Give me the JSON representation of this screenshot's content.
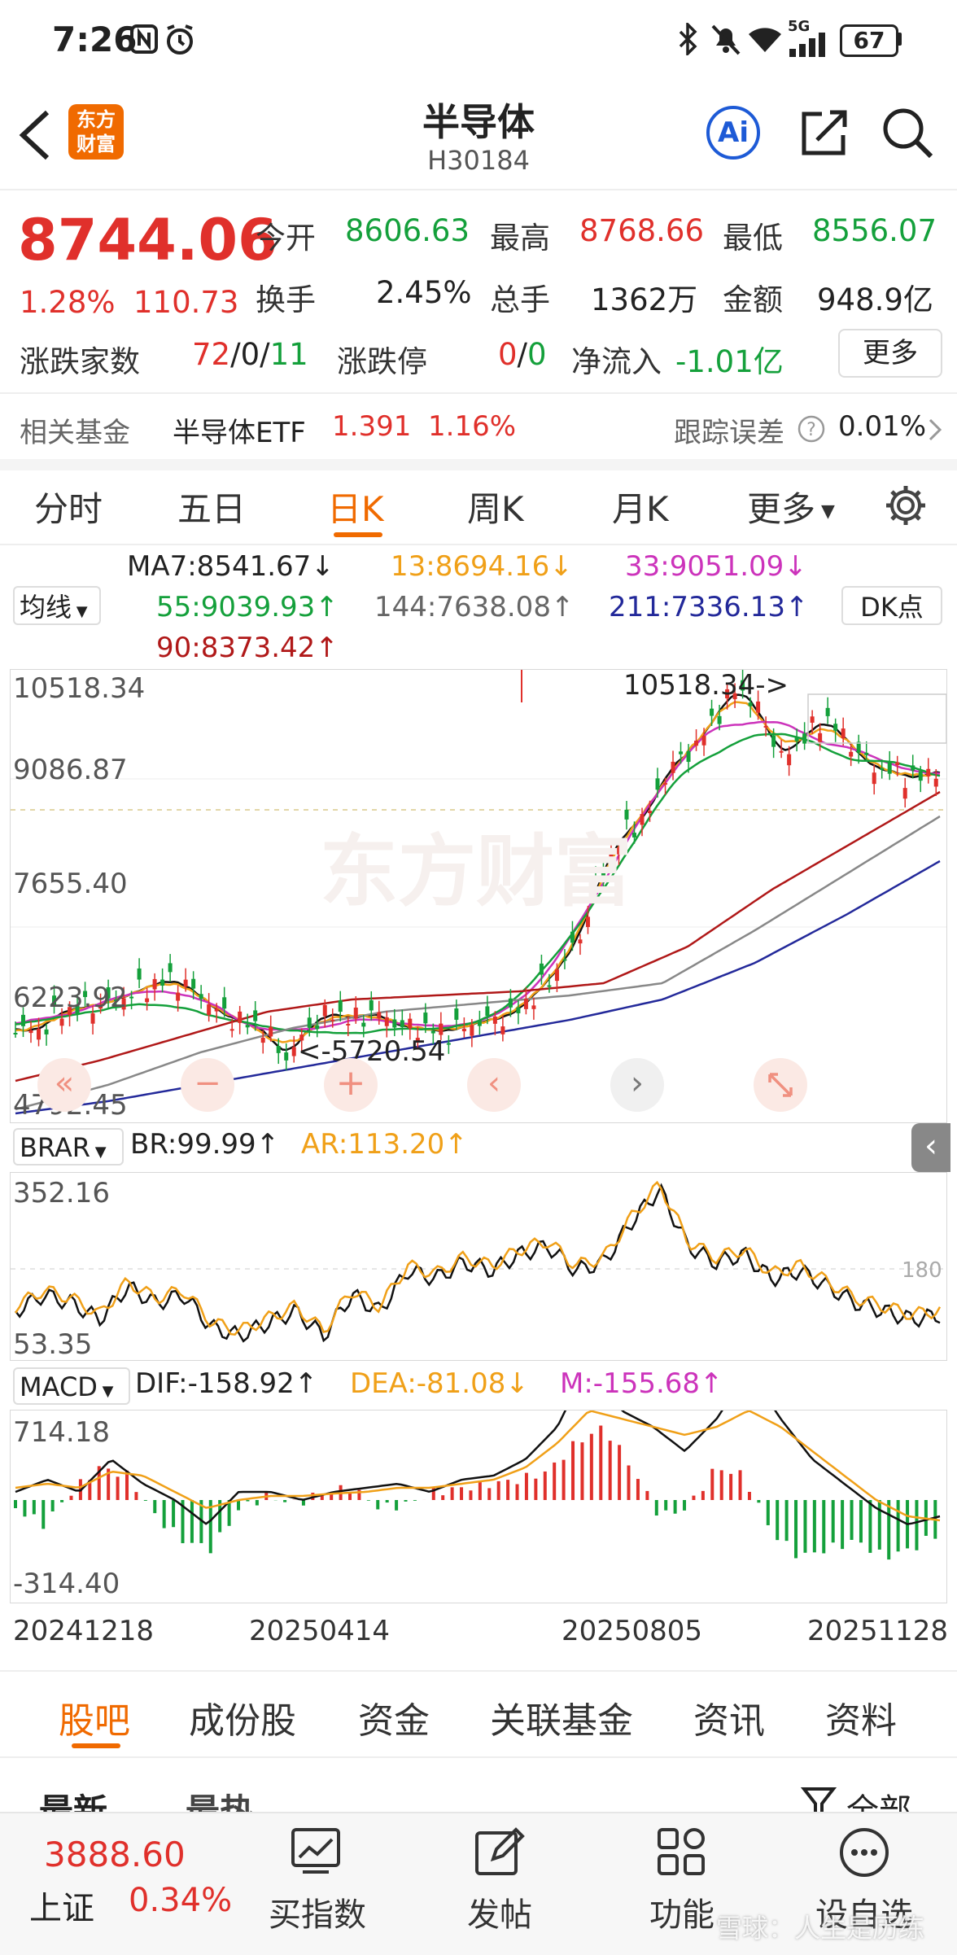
{
  "status_bar": {
    "time": "7:26",
    "battery": "67",
    "signal_tag": "5G"
  },
  "header": {
    "logo_line1": "东方",
    "logo_line2": "财富",
    "title": "半导体",
    "code": "H30184",
    "ai_label": "Ai"
  },
  "quote": {
    "price": "8744.06",
    "change_pct": "1.28%",
    "change": "110.73",
    "open_label": "今开",
    "open": "8606.63",
    "high_label": "最高",
    "high": "8768.66",
    "low_label": "最低",
    "low": "8556.07",
    "turnover_label": "换手",
    "turnover": "2.45%",
    "volume_label": "总手",
    "volume": "1362万",
    "amount_label": "金额",
    "amount": "948.9亿",
    "breadth_label": "涨跌家数",
    "breadth_up": "72",
    "breadth_sep1": "/",
    "breadth_flat": "0",
    "breadth_sep2": "/",
    "breadth_down": "11",
    "limit_label": "涨跌停",
    "limit_up": "0",
    "limit_sep": "/",
    "limit_down": "0",
    "inflow_label": "净流入",
    "inflow": "-1.01亿",
    "more_button": "更多"
  },
  "fund": {
    "label": "相关基金",
    "name": "半导体ETF",
    "price": "1.391",
    "pct": "1.16%",
    "track_label": "跟踪误差",
    "track_value": "0.01%"
  },
  "period_tabs": [
    "分时",
    "五日",
    "日K",
    "周K",
    "月K",
    "更多"
  ],
  "active_period": "日K",
  "ma": {
    "selector": "均线",
    "ma7": "MA7:8541.67↓",
    "ma13": "13:8694.16↓",
    "ma33": "33:9051.09↓",
    "ma55": "55:9039.93↑",
    "ma144": "144:7638.08↑",
    "ma211": "211:7336.13↑",
    "ma90": "90:8373.42↑",
    "dk_button": "DK点"
  },
  "main_chart": {
    "y_labels": [
      "10518.34",
      "9086.87",
      "7655.40",
      "6223.92",
      "4792.45"
    ],
    "high_annotation": "10518.34->",
    "low_annotation": "<-5720.54",
    "watermark": "东方财富"
  },
  "brar": {
    "selector": "BRAR",
    "br": "BR:99.99↑",
    "ar": "AR:113.20↑",
    "y_top": "352.16",
    "y_bottom": "53.35",
    "ref_line": "180"
  },
  "macd": {
    "selector": "MACD",
    "dif": "DIF:-158.92↑",
    "dea": "DEA:-81.08↓",
    "m": "M:-155.68↑",
    "y_top": "714.18",
    "y_bottom": "-314.40"
  },
  "x_dates": [
    "20241218",
    "20250414",
    "20250805",
    "20251128"
  ],
  "bottom_tabs": [
    "股吧",
    "成份股",
    "资金",
    "关联基金",
    "资讯",
    "资料"
  ],
  "active_bottom_tab": "股吧",
  "sub_tabs": {
    "latest": "最新",
    "hot": "最热",
    "all": "全部"
  },
  "bottom_nav": {
    "index_value": "3888.60",
    "index_name": "上证",
    "index_pct": "0.34%",
    "items": [
      "买指数",
      "发帖",
      "功能",
      "设自选"
    ]
  },
  "watermark_text": "雪球：人生是历练",
  "colors": {
    "up": "#e0302b",
    "down": "#14a03b",
    "accent": "#f06a00"
  }
}
